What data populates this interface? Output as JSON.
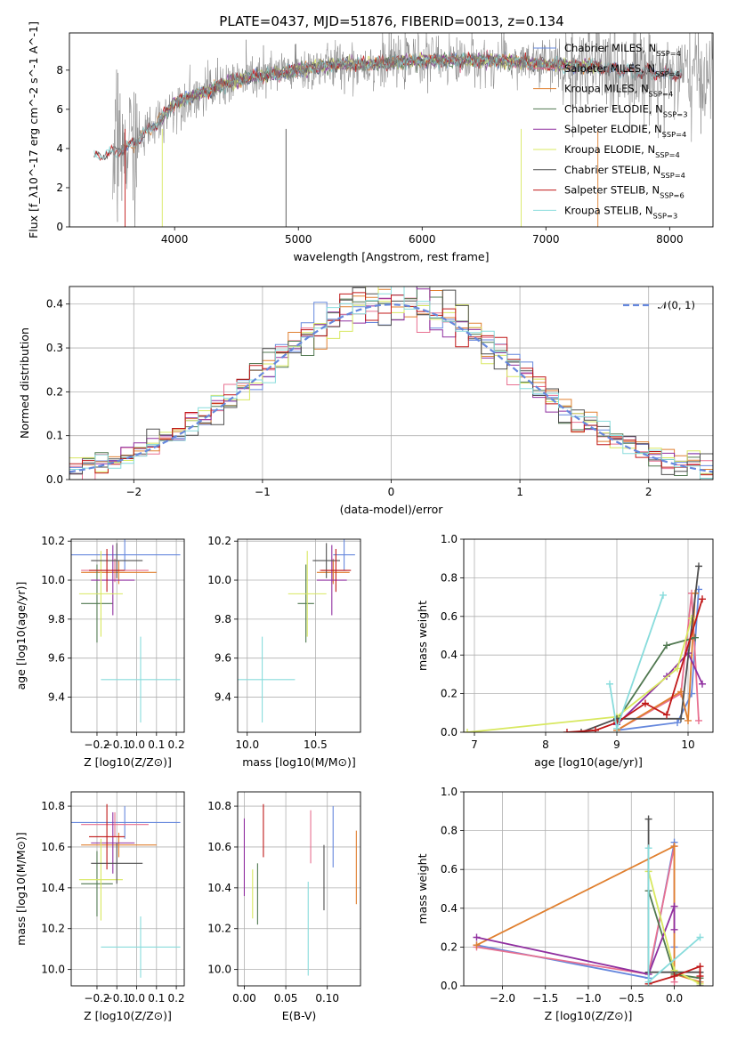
{
  "title": "PLATE=0437, MJD=51876, FIBERID=0013, z=0.134",
  "colors": {
    "Chabrier MILES": "#6688dd",
    "Salpeter MILES": "#e87090",
    "Kroupa MILES": "#e08030",
    "Chabrier ELODIE": "#507850",
    "Salpeter ELODIE": "#9030a0",
    "Kroupa ELODIE": "#d8e860",
    "Chabrier STELIB": "#505050",
    "Salpeter STELIB": "#c01818",
    "Kroupa STELIB": "#88dcdc",
    "data": "#808080",
    "normal": "#6688dd"
  },
  "chart_data": [
    {
      "id": "spectrum",
      "type": "line",
      "xlabel": "wavelength [Angstrom, rest frame]",
      "ylabel": "Flux [f_λ10^-17 erg cm^-2 s^-1 A^-1]",
      "xlim": [
        3150,
        8350
      ],
      "ylim": [
        0,
        9.9
      ],
      "xticks": [
        4000,
        5000,
        6000,
        7000,
        8000
      ],
      "yticks": [
        0,
        2,
        4,
        6,
        8
      ],
      "legend_position": "top-right",
      "legend": [
        "Chabrier MILES, N_SSP=4",
        "Salpeter MILES, N_SSP=4",
        "Kroupa MILES, N_SSP=4",
        "Chabrier ELODIE, N_SSP=3",
        "Salpeter ELODIE, N_SSP=4",
        "Kroupa ELODIE, N_SSP=4",
        "Chabrier STELIB, N_SSP=4",
        "Salpeter STELIB, N_SSP=6",
        "Kroupa STELIB, N_SSP=3"
      ],
      "continuum": {
        "x": [
          3350,
          3500,
          3600,
          3700,
          3800,
          3900,
          4000,
          4100,
          4200,
          4300,
          4400,
          4600,
          4800,
          5000,
          5200,
          5400,
          5600,
          5800,
          6000,
          6200,
          6400,
          6600,
          6800,
          7000,
          7200,
          7400,
          7600,
          7800,
          8000,
          8100
        ],
        "y": [
          3.6,
          3.8,
          4.0,
          4.4,
          5.0,
          5.6,
          6.3,
          6.6,
          6.8,
          7.0,
          7.3,
          7.6,
          7.8,
          8.0,
          8.2,
          8.3,
          8.3,
          8.4,
          8.5,
          8.5,
          8.5,
          8.5,
          8.4,
          8.3,
          8.2,
          8.2,
          8.0,
          7.9,
          7.8,
          7.7
        ]
      }
    },
    {
      "id": "residuals",
      "type": "bar",
      "xlabel": "(data-model)/error",
      "ylabel": "Normed distribution",
      "xlim": [
        -2.5,
        2.5
      ],
      "ylim": [
        0,
        0.44
      ],
      "xticks": [
        -2,
        -1,
        0,
        1,
        2
      ],
      "yticks": [
        0.0,
        0.1,
        0.2,
        0.3,
        0.4
      ],
      "legend": [
        "𝒩(0, 1)"
      ],
      "legend_position": "top-right",
      "bin_width": 0.1
    },
    {
      "id": "age_vs_Z",
      "type": "scatter",
      "xlabel": "Z [log10(Z/Z⊙)]",
      "ylabel": "age  [log10(age/yr)]",
      "xlim": [
        -0.33,
        0.24
      ],
      "ylim": [
        9.22,
        10.21
      ],
      "xticks": [
        -0.2,
        -0.1,
        0.0,
        0.1,
        0.2
      ],
      "yticks": [
        9.4,
        9.6,
        9.8,
        10.0,
        10.2
      ],
      "points": [
        {
          "model": "Chabrier MILES",
          "x": -0.06,
          "xerr": 0.28,
          "y": 10.13,
          "yerr": 0.08
        },
        {
          "model": "Salpeter MILES",
          "x": -0.11,
          "xerr": 0.17,
          "y": 10.05,
          "yerr": 0.06
        },
        {
          "model": "Kroupa MILES",
          "x": -0.09,
          "xerr": 0.19,
          "y": 10.04,
          "yerr": 0.06
        },
        {
          "model": "Chabrier ELODIE",
          "x": -0.2,
          "xerr": 0.08,
          "y": 9.88,
          "yerr": 0.2
        },
        {
          "model": "Salpeter ELODIE",
          "x": -0.12,
          "xerr": 0.11,
          "y": 10.0,
          "yerr": 0.18
        },
        {
          "model": "Kroupa ELODIE",
          "x": -0.18,
          "xerr": 0.11,
          "y": 9.93,
          "yerr": 0.22
        },
        {
          "model": "Chabrier STELIB",
          "x": -0.1,
          "xerr": 0.13,
          "y": 10.1,
          "yerr": 0.09
        },
        {
          "model": "Salpeter STELIB",
          "x": -0.15,
          "xerr": 0.09,
          "y": 10.05,
          "yerr": 0.11
        },
        {
          "model": "Kroupa STELIB",
          "x": 0.02,
          "xerr": 0.2,
          "y": 9.49,
          "yerr": 0.22
        }
      ]
    },
    {
      "id": "age_vs_mass",
      "type": "scatter",
      "xlabel": "mass [log10(M/M⊙)]",
      "ylabel": "",
      "xlim": [
        9.93,
        10.83
      ],
      "ylim": [
        9.22,
        10.21
      ],
      "xticks": [
        10.0,
        10.5
      ],
      "yticks": [
        9.4,
        9.6,
        9.8,
        10.0,
        10.2
      ],
      "points": [
        {
          "model": "Chabrier MILES",
          "x": 10.71,
          "xerr": 0.08,
          "y": 10.13,
          "yerr": 0.08
        },
        {
          "model": "Salpeter MILES",
          "x": 10.63,
          "xerr": 0.1,
          "y": 10.05,
          "yerr": 0.06
        },
        {
          "model": "Kroupa MILES",
          "x": 10.63,
          "xerr": 0.12,
          "y": 10.04,
          "yerr": 0.06
        },
        {
          "model": "Chabrier ELODIE",
          "x": 10.43,
          "xerr": 0.06,
          "y": 9.88,
          "yerr": 0.2
        },
        {
          "model": "Salpeter ELODIE",
          "x": 10.62,
          "xerr": 0.11,
          "y": 10.0,
          "yerr": 0.18
        },
        {
          "model": "Kroupa ELODIE",
          "x": 10.44,
          "xerr": 0.14,
          "y": 9.93,
          "yerr": 0.22
        },
        {
          "model": "Chabrier STELIB",
          "x": 10.58,
          "xerr": 0.1,
          "y": 10.1,
          "yerr": 0.09
        },
        {
          "model": "Salpeter STELIB",
          "x": 10.65,
          "xerr": 0.11,
          "y": 10.05,
          "yerr": 0.11
        },
        {
          "model": "Kroupa STELIB",
          "x": 10.11,
          "xerr": 0.24,
          "y": 9.49,
          "yerr": 0.22
        }
      ]
    },
    {
      "id": "weight_vs_age",
      "type": "line",
      "xlabel": "age  [log10(age/yr)]",
      "ylabel": "mass weight",
      "xlim": [
        6.85,
        10.35
      ],
      "ylim": [
        0.0,
        1.0
      ],
      "xticks": [
        7,
        8,
        9,
        10
      ],
      "yticks": [
        0.0,
        0.2,
        0.4,
        0.6,
        0.8,
        1.0
      ],
      "series": [
        {
          "model": "Chabrier MILES",
          "x": [
            9.0,
            9.85,
            10.05,
            10.15
          ],
          "y": [
            0.01,
            0.05,
            0.2,
            0.74
          ]
        },
        {
          "model": "Salpeter MILES",
          "x": [
            9.0,
            9.9,
            10.05,
            10.15
          ],
          "y": [
            0.01,
            0.2,
            0.72,
            0.06
          ]
        },
        {
          "model": "Kroupa MILES",
          "x": [
            9.0,
            9.9,
            10.0,
            10.1
          ],
          "y": [
            0.01,
            0.21,
            0.06,
            0.72
          ]
        },
        {
          "model": "Chabrier ELODIE",
          "x": [
            9.0,
            9.7,
            10.1
          ],
          "y": [
            0.06,
            0.45,
            0.49
          ]
        },
        {
          "model": "Salpeter ELODIE",
          "x": [
            9.0,
            9.7,
            10.0,
            10.2
          ],
          "y": [
            0.04,
            0.29,
            0.41,
            0.25
          ]
        },
        {
          "model": "Kroupa ELODIE",
          "x": [
            6.9,
            9.0,
            9.85,
            10.05
          ],
          "y": [
            0.0,
            0.08,
            0.33,
            0.59
          ]
        },
        {
          "model": "Chabrier STELIB",
          "x": [
            8.5,
            9.0,
            9.9,
            10.15
          ],
          "y": [
            0.0,
            0.07,
            0.07,
            0.86
          ]
        },
        {
          "model": "Salpeter STELIB",
          "x": [
            8.3,
            8.7,
            9.0,
            9.4,
            9.7,
            10.2
          ],
          "y": [
            0.0,
            0.01,
            0.05,
            0.15,
            0.09,
            0.69
          ]
        },
        {
          "model": "Kroupa STELIB",
          "x": [
            8.9,
            9.0,
            9.65
          ],
          "y": [
            0.25,
            0.02,
            0.71
          ]
        }
      ]
    },
    {
      "id": "mass_vs_Z",
      "type": "scatter",
      "xlabel": "Z [log10(Z/Z⊙)]",
      "ylabel": "mass [log10(M/M⊙)]",
      "xlim": [
        -0.33,
        0.24
      ],
      "ylim": [
        9.92,
        10.87
      ],
      "xticks": [
        -0.2,
        -0.1,
        0.0,
        0.1,
        0.2
      ],
      "yticks": [
        10.0,
        10.2,
        10.4,
        10.6,
        10.8
      ],
      "points": [
        {
          "model": "Chabrier MILES",
          "x": -0.06,
          "xerr": 0.28,
          "y": 10.72,
          "yerr": 0.08
        },
        {
          "model": "Salpeter MILES",
          "x": -0.11,
          "xerr": 0.17,
          "y": 10.71,
          "yerr": 0.06
        },
        {
          "model": "Kroupa MILES",
          "x": -0.09,
          "xerr": 0.19,
          "y": 10.61,
          "yerr": 0.06
        },
        {
          "model": "Chabrier ELODIE",
          "x": -0.2,
          "xerr": 0.08,
          "y": 10.42,
          "yerr": 0.16
        },
        {
          "model": "Salpeter ELODIE",
          "x": -0.12,
          "xerr": 0.11,
          "y": 10.62,
          "yerr": 0.15
        },
        {
          "model": "Kroupa ELODIE",
          "x": -0.18,
          "xerr": 0.11,
          "y": 10.44,
          "yerr": 0.2
        },
        {
          "model": "Chabrier STELIB",
          "x": -0.1,
          "xerr": 0.13,
          "y": 10.52,
          "yerr": 0.1
        },
        {
          "model": "Salpeter STELIB",
          "x": -0.15,
          "xerr": 0.09,
          "y": 10.65,
          "yerr": 0.16
        },
        {
          "model": "Kroupa STELIB",
          "x": 0.02,
          "xerr": 0.2,
          "y": 10.11,
          "yerr": 0.15
        }
      ]
    },
    {
      "id": "mass_vs_EBV",
      "type": "scatter",
      "xlabel": "E(B-V)",
      "ylabel": "",
      "xlim": [
        -0.008,
        0.14
      ],
      "ylim": [
        9.92,
        10.87
      ],
      "xticks": [
        0.0,
        0.05,
        0.1
      ],
      "yticks": [
        10.0,
        10.2,
        10.4,
        10.6,
        10.8
      ],
      "points": [
        {
          "model": "Chabrier MILES",
          "x": 0.107,
          "y": 10.65,
          "yerr": 0.15
        },
        {
          "model": "Salpeter MILES",
          "x": 0.08,
          "y": 10.65,
          "yerr": 0.13
        },
        {
          "model": "Kroupa MILES",
          "x": 0.135,
          "y": 10.5,
          "yerr": 0.18
        },
        {
          "model": "Chabrier ELODIE",
          "x": 0.016,
          "y": 10.37,
          "yerr": 0.15
        },
        {
          "model": "Salpeter ELODIE",
          "x": 0.0,
          "y": 10.55,
          "yerr": 0.19
        },
        {
          "model": "Kroupa ELODIE",
          "x": 0.01,
          "y": 10.37,
          "yerr": 0.12
        },
        {
          "model": "Chabrier STELIB",
          "x": 0.096,
          "y": 10.45,
          "yerr": 0.16
        },
        {
          "model": "Salpeter STELIB",
          "x": 0.023,
          "y": 10.68,
          "yerr": 0.13
        },
        {
          "model": "Kroupa STELIB",
          "x": 0.077,
          "y": 10.2,
          "yerr": 0.23
        }
      ]
    },
    {
      "id": "weight_vs_Z",
      "type": "line",
      "xlabel": "Z [log10(Z/Z⊙)]",
      "ylabel": "mass weight",
      "xlim": [
        -2.45,
        0.45
      ],
      "ylim": [
        0.0,
        1.0
      ],
      "xticks": [
        -2.0,
        -1.5,
        -1.0,
        -0.5,
        0.0
      ],
      "yticks": [
        0.0,
        0.2,
        0.4,
        0.6,
        0.8,
        1.0
      ],
      "series": [
        {
          "model": "Chabrier MILES",
          "x": [
            -2.3,
            -0.3,
            0.0,
            0.0
          ],
          "y": [
            0.21,
            0.04,
            0.74,
            0.2
          ]
        },
        {
          "model": "Salpeter MILES",
          "x": [
            -2.3,
            -0.3,
            0.0,
            0.0
          ],
          "y": [
            0.2,
            0.06,
            0.72,
            0.02
          ]
        },
        {
          "model": "Kroupa MILES",
          "x": [
            -2.3,
            0.0,
            0.0,
            0.3
          ],
          "y": [
            0.21,
            0.72,
            0.06,
            0.02
          ]
        },
        {
          "model": "Chabrier ELODIE",
          "x": [
            -0.3,
            0.0,
            0.3
          ],
          "y": [
            0.49,
            0.06,
            0.04
          ]
        },
        {
          "model": "Salpeter ELODIE",
          "x": [
            -2.3,
            -0.3,
            0.0,
            0.0
          ],
          "y": [
            0.25,
            0.06,
            0.41,
            0.29
          ]
        },
        {
          "model": "Kroupa ELODIE",
          "x": [
            -0.3,
            0.0,
            0.3
          ],
          "y": [
            0.59,
            0.08,
            0.01
          ]
        },
        {
          "model": "Chabrier STELIB",
          "x": [
            -0.3,
            -0.3,
            0.3,
            0.3
          ],
          "y": [
            0.86,
            0.07,
            0.07,
            0.0
          ]
        },
        {
          "model": "Salpeter STELIB",
          "x": [
            -0.3,
            0.0,
            0.3,
            0.3
          ],
          "y": [
            0.01,
            0.05,
            0.1,
            0.05
          ]
        },
        {
          "model": "Kroupa STELIB",
          "x": [
            -0.3,
            -0.3,
            0.3
          ],
          "y": [
            0.71,
            0.02,
            0.25
          ]
        }
      ]
    }
  ]
}
